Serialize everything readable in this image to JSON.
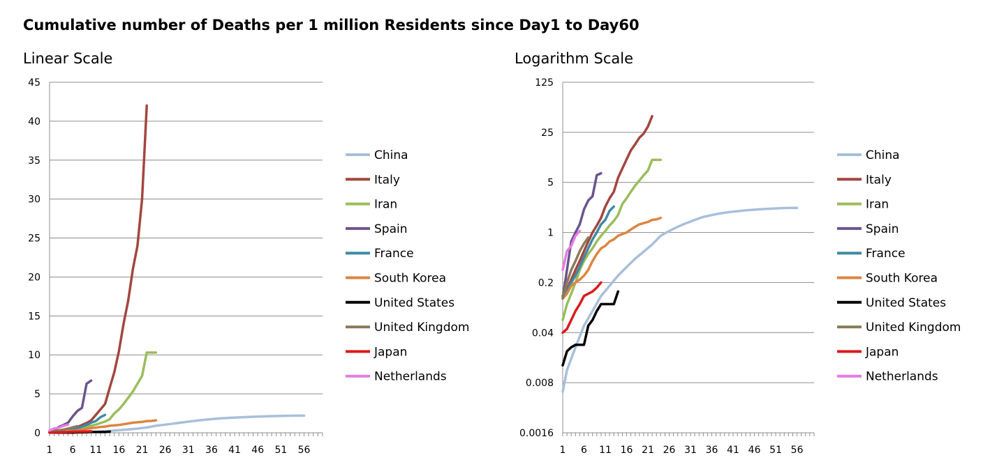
{
  "title": "Cumulative number of Deaths per 1 million Residents since Day1 to Day60",
  "chart_data": [
    {
      "type": "line",
      "title": "Linear Scale",
      "scale": "linear",
      "xlabel": "",
      "ylabel": "",
      "xlim": [
        1,
        60
      ],
      "ylim": [
        0,
        45
      ],
      "yticks": [
        0,
        5,
        10,
        15,
        20,
        25,
        30,
        35,
        40,
        45
      ],
      "xticks": [
        1,
        6,
        11,
        16,
        21,
        26,
        31,
        36,
        41,
        46,
        51,
        56
      ],
      "grid": "horizontal",
      "legend": "right"
    },
    {
      "type": "line",
      "title": "Logarithm Scale",
      "scale": "log",
      "xlabel": "",
      "ylabel": "",
      "xlim": [
        1,
        60
      ],
      "ylim": [
        0.0016,
        125
      ],
      "yticks": [
        0.0016,
        0.008,
        0.04,
        0.2,
        1,
        5,
        25,
        125
      ],
      "ytick_labels": [
        "0.0016",
        "0.008",
        "0.04",
        "0.2",
        "1",
        "5",
        "25",
        "125"
      ],
      "xticks": [
        1,
        6,
        11,
        16,
        21,
        26,
        31,
        36,
        41,
        46,
        51,
        56
      ],
      "grid": "horizontal",
      "legend": "right"
    }
  ],
  "series": [
    {
      "name": "China",
      "color": "#a8bfdc",
      "x": [
        1,
        2,
        4,
        6,
        8,
        10,
        12,
        14,
        16,
        18,
        20,
        22,
        24,
        26,
        28,
        30,
        32,
        34,
        36,
        38,
        40,
        42,
        44,
        46,
        48,
        50,
        52,
        54,
        56
      ],
      "y": [
        0.006,
        0.012,
        0.025,
        0.05,
        0.08,
        0.13,
        0.18,
        0.25,
        0.33,
        0.43,
        0.54,
        0.68,
        0.9,
        1.05,
        1.2,
        1.35,
        1.5,
        1.65,
        1.75,
        1.85,
        1.92,
        1.98,
        2.04,
        2.08,
        2.12,
        2.15,
        2.18,
        2.2,
        2.2
      ]
    },
    {
      "name": "Italy",
      "color": "#a3463f",
      "x": [
        1,
        2,
        3,
        4,
        5,
        6,
        7,
        8,
        9,
        10,
        11,
        12,
        13,
        14,
        15,
        16,
        17,
        18,
        19,
        20,
        21,
        22
      ],
      "y": [
        0.13,
        0.16,
        0.22,
        0.3,
        0.4,
        0.55,
        0.75,
        1.0,
        1.25,
        1.6,
        2.3,
        3.0,
        3.7,
        5.8,
        7.8,
        10.5,
        14,
        17,
        21,
        24,
        30,
        42
      ]
    },
    {
      "name": "Iran",
      "color": "#9bbd5b",
      "x": [
        1,
        2,
        3,
        4,
        5,
        6,
        7,
        8,
        9,
        10,
        11,
        12,
        13,
        14,
        15,
        16,
        17,
        18,
        19,
        20,
        21,
        22,
        23,
        24
      ],
      "y": [
        0.06,
        0.1,
        0.14,
        0.2,
        0.3,
        0.4,
        0.5,
        0.6,
        0.75,
        0.9,
        1.05,
        1.25,
        1.45,
        1.75,
        2.5,
        3.0,
        3.7,
        4.5,
        5.3,
        6.3,
        7.3,
        10.3,
        10.3,
        10.3
      ]
    },
    {
      "name": "Spain",
      "color": "#6b548c",
      "x": [
        1,
        2,
        3,
        4,
        5,
        6,
        7,
        8,
        9,
        10
      ],
      "y": [
        0.12,
        0.3,
        0.75,
        1.0,
        1.3,
        2.1,
        2.8,
        3.2,
        6.3,
        6.7
      ]
    },
    {
      "name": "France",
      "color": "#3e8aa4",
      "x": [
        1,
        2,
        3,
        4,
        5,
        6,
        7,
        8,
        9,
        10,
        11,
        12,
        13
      ],
      "y": [
        0.12,
        0.15,
        0.2,
        0.25,
        0.33,
        0.45,
        0.6,
        0.8,
        1.0,
        1.3,
        1.5,
        2.0,
        2.3
      ]
    },
    {
      "name": "South Korea",
      "color": "#dc8540",
      "x": [
        1,
        2,
        3,
        4,
        5,
        6,
        7,
        8,
        9,
        10,
        11,
        12,
        13,
        14,
        15,
        16,
        17,
        18,
        19,
        20,
        21,
        22,
        23,
        24
      ],
      "y": [
        0.12,
        0.14,
        0.18,
        0.2,
        0.22,
        0.25,
        0.3,
        0.4,
        0.5,
        0.6,
        0.65,
        0.75,
        0.8,
        0.9,
        0.95,
        1.0,
        1.1,
        1.2,
        1.3,
        1.35,
        1.4,
        1.5,
        1.52,
        1.6
      ]
    },
    {
      "name": "United States",
      "color": "#000000",
      "x": [
        1,
        2,
        3,
        4,
        5,
        6,
        7,
        8,
        9,
        10,
        11,
        12,
        13,
        14
      ],
      "y": [
        0.014,
        0.022,
        0.025,
        0.027,
        0.027,
        0.027,
        0.05,
        0.06,
        0.08,
        0.1,
        0.1,
        0.1,
        0.1,
        0.15
      ]
    },
    {
      "name": "United Kingdom",
      "color": "#8a7b59",
      "x": [
        1,
        2,
        3,
        4,
        5,
        6,
        7
      ],
      "y": [
        0.12,
        0.2,
        0.3,
        0.4,
        0.55,
        0.7,
        0.85
      ]
    },
    {
      "name": "Japan",
      "color": "#dc1a1c",
      "x": [
        1,
        2,
        3,
        4,
        5,
        6,
        7,
        8,
        9,
        10
      ],
      "y": [
        0.04,
        0.045,
        0.06,
        0.08,
        0.1,
        0.13,
        0.14,
        0.15,
        0.17,
        0.2
      ]
    },
    {
      "name": "Netherlands",
      "color": "#e27de2",
      "x": [
        1,
        2,
        3,
        4,
        5
      ],
      "y": [
        0.3,
        0.55,
        0.65,
        0.9,
        1.05
      ]
    }
  ]
}
